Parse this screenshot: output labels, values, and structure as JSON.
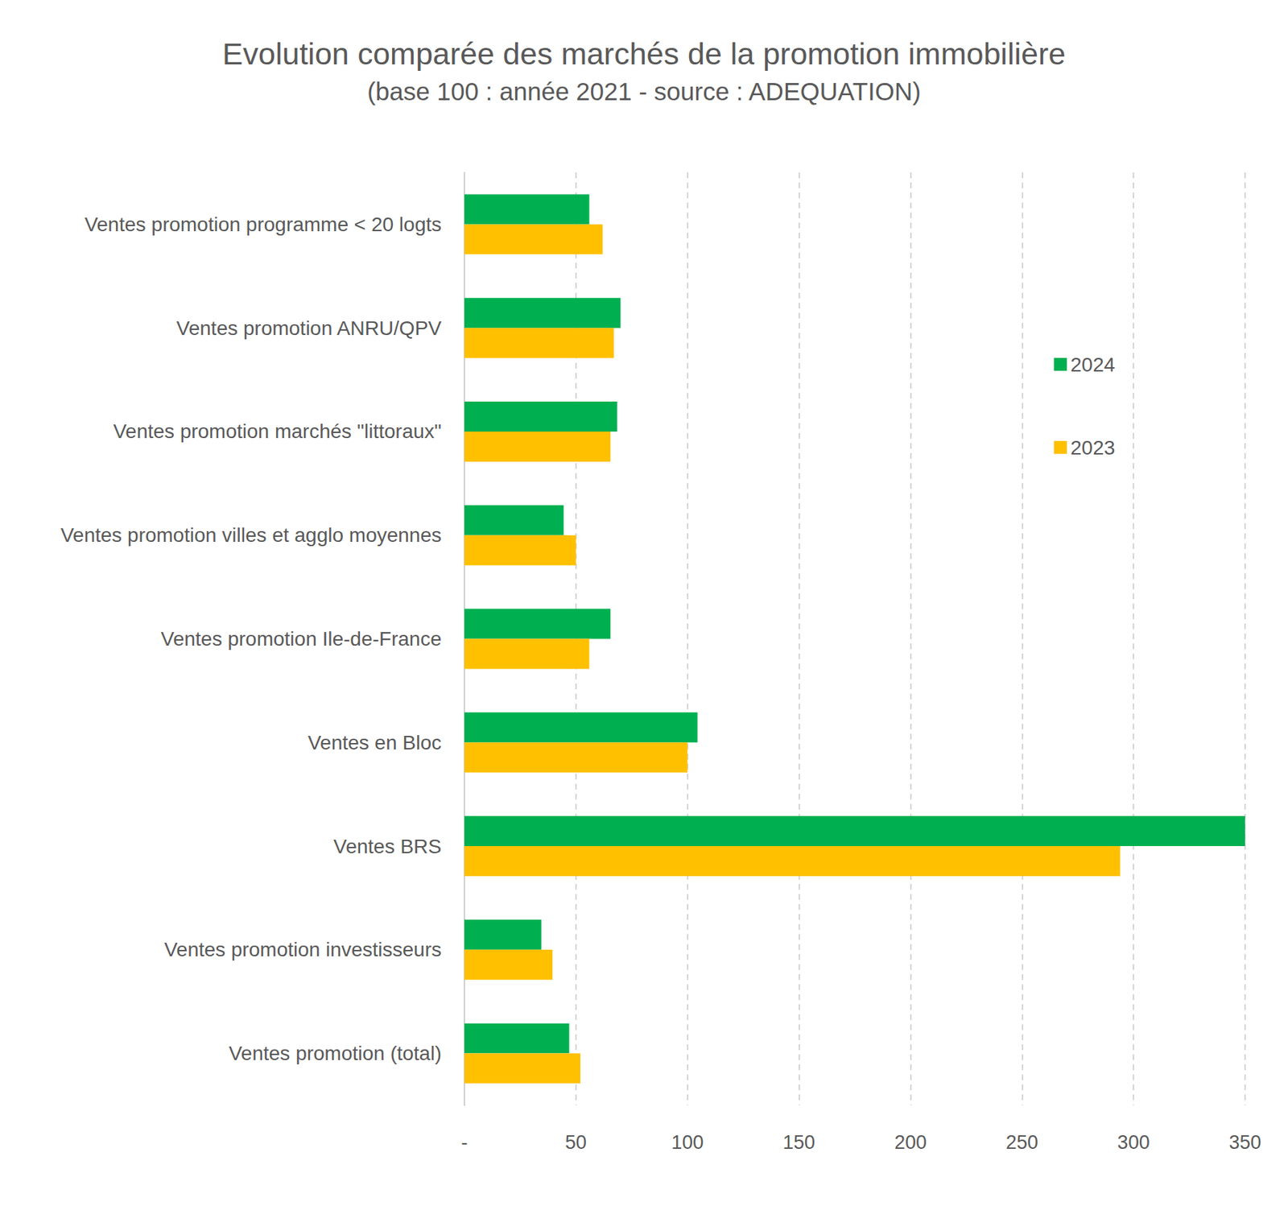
{
  "chart_data": {
    "type": "bar",
    "orientation": "horizontal",
    "title": "Evolution comparée des marchés de la promotion immobilière",
    "subtitle": "(base 100 : année 2021 - source : ADEQUATION)",
    "categories": [
      "Ventes promotion programme < 20 logts",
      "Ventes promotion ANRU/QPV",
      "Ventes promotion marchés \"littoraux\"",
      "Ventes promotion villes et agglo moyennes",
      "Ventes promotion Ile-de-France",
      "Ventes en Bloc",
      "Ventes BRS",
      "Ventes promotion investisseurs",
      "Ventes promotion (total)"
    ],
    "series": [
      {
        "name": "2024",
        "color": "#00b050",
        "values": [
          56,
          70,
          68.5,
          44.5,
          65.5,
          104.5,
          350,
          34.5,
          47
        ]
      },
      {
        "name": "2023",
        "color": "#ffc000",
        "values": [
          62,
          67,
          65.5,
          50,
          56,
          100,
          294,
          39.5,
          52
        ]
      }
    ],
    "xlim": [
      0,
      350
    ],
    "xticks": [
      {
        "value": 0,
        "label": "-"
      },
      50,
      100,
      150,
      200,
      250,
      300,
      350
    ],
    "grid": true,
    "legend": "right"
  }
}
